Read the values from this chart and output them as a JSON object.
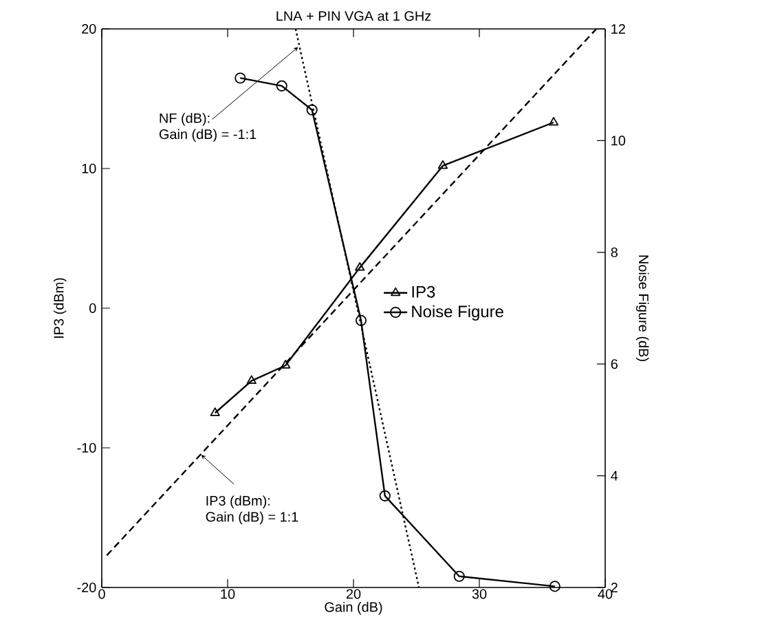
{
  "chart_data": {
    "type": "line",
    "title": "LNA + PIN VGA at 1 GHz",
    "xlabel": "Gain (dB)",
    "ylabel": "IP3 (dBm)",
    "y2label": "Noise Figure (dB)",
    "xlim": [
      0,
      40
    ],
    "xticks": [
      0,
      10,
      20,
      30,
      40
    ],
    "ylim": [
      -20,
      20
    ],
    "yticks": [
      -20,
      -10,
      0,
      10,
      20
    ],
    "y2lim": [
      2,
      12
    ],
    "y2ticks": [
      2,
      4,
      6,
      8,
      10,
      12
    ],
    "legend": "right",
    "grid": false,
    "series": [
      {
        "name": "IP3",
        "color": "#000000",
        "marker": "triangle",
        "line_style": "solid",
        "x": [
          9.0,
          11.9,
          14.6,
          20.5,
          27.1,
          35.9
        ],
        "values": [
          -7.5,
          -5.2,
          -4.1,
          2.9,
          10.2,
          13.3
        ]
      },
      {
        "name": "Noise Figure",
        "color": "#000000",
        "marker": "circle",
        "line_style": "solid",
        "axis": "y2",
        "x": [
          11.0,
          14.3,
          16.7,
          20.6,
          22.5,
          28.4,
          36.0
        ],
        "values": [
          11.12,
          10.98,
          10.55,
          6.78,
          3.64,
          2.2,
          2.02
        ]
      },
      {
        "color": "#000000",
        "marker": "none",
        "line_style": "dashed",
        "x": [
          0.4,
          39.3
        ],
        "values": [
          -17.7,
          20
        ]
      },
      {
        "color": "#000000",
        "marker": "none",
        "line_style": "dotted",
        "axis": "y2",
        "x": [
          15.4,
          25.2
        ],
        "values": [
          12,
          2
        ]
      }
    ],
    "annotations": [
      {
        "text": "NF (dB):",
        "x": 15.6,
        "y": 18.7
      },
      "Gain (dB) = -1:1",
      {
        "text": "IP3 (dBm):",
        "x": 7.9,
        "y": -10.5
      },
      "Gain (dB) = 1:1"
    ]
  }
}
